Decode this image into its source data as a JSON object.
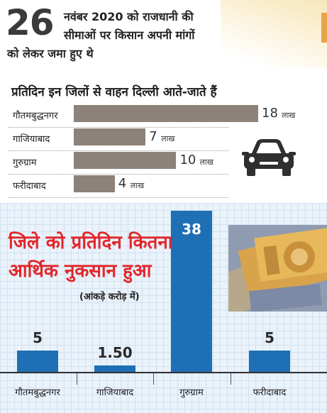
{
  "intro": {
    "day": "26",
    "line1": "नवंबर 2020 को राजधानी की",
    "line2": "सीमाओं पर किसान अपनी मांगों",
    "line3": "को लेकर जमा हुए थे"
  },
  "chart_data": [
    {
      "type": "bar",
      "orientation": "horizontal",
      "title": "प्रतिदिन इन जिलों से वाहन दिल्ली आते-जाते हैं",
      "categories": [
        "गौतमबुद्धनगर",
        "गाजियाबाद",
        "गुरुग्राम",
        "फरीदाबाद"
      ],
      "values": [
        18,
        7,
        10,
        4
      ],
      "value_labels": [
        "18",
        "7",
        "10",
        "4"
      ],
      "unit": "लाख",
      "bar_color": "#8c8279",
      "grid": false,
      "icon": "car-icon"
    },
    {
      "type": "bar",
      "orientation": "vertical",
      "title_lines": [
        "जिले को प्रतिदिन कितना",
        "आर्थिक नुकसान हुआ"
      ],
      "subtitle": "(आंकड़े करोड़ में)",
      "categories": [
        "गौतमबुद्धनगर",
        "गाजियाबाद",
        "गुरुग्राम",
        "फरीदाबाद"
      ],
      "values": [
        5,
        1.5,
        38,
        5
      ],
      "value_labels": [
        "5",
        "1.50",
        "38",
        "5"
      ],
      "bar_color": "#1f6fb5",
      "title_color": "#e3262a",
      "grid": true,
      "icon": "currency-notes-icon"
    }
  ]
}
